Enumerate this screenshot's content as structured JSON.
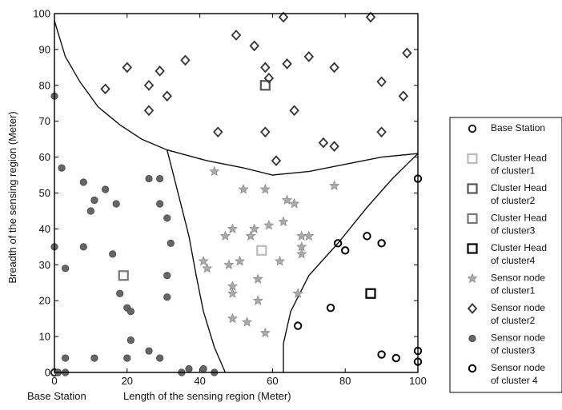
{
  "chart_data": {
    "type": "scatter",
    "title": "",
    "xlabel": "Length of the sensing region (Meter)",
    "ylabel": "Breadth of the sensing region (Meter)",
    "corner_label": "Base Station",
    "xlim": [
      0,
      100
    ],
    "ylim": [
      0,
      100
    ],
    "xticks": [
      0,
      20,
      40,
      60,
      80,
      100
    ],
    "yticks": [
      0,
      10,
      20,
      30,
      40,
      50,
      60,
      70,
      80,
      90,
      100
    ],
    "grid": false,
    "legend_position": "right, outside plot",
    "legend": [
      {
        "label": [
          "Base Station"
        ],
        "marker": "circle",
        "color": "#222222"
      },
      {
        "label": [
          "Cluster Head",
          "of cluster1"
        ],
        "marker": "square",
        "color": "#bbbbbb"
      },
      {
        "label": [
          "Cluster Head",
          "of cluster2"
        ],
        "marker": "square",
        "color": "#555555"
      },
      {
        "label": [
          "Cluster Head",
          "of cluster3"
        ],
        "marker": "square",
        "color": "#777777"
      },
      {
        "label": [
          "Cluster Head",
          "of cluster4"
        ],
        "marker": "square",
        "color": "#000000"
      },
      {
        "label": [
          "Sensor node",
          "of cluster1"
        ],
        "marker": "star",
        "color": "#aaaaaa"
      },
      {
        "label": [
          "Sensor node",
          "of cluster2"
        ],
        "marker": "diamond",
        "color": "#333333"
      },
      {
        "label": [
          "Sensor node",
          "of cluster3"
        ],
        "marker": "filled-circle",
        "color": "#666666"
      },
      {
        "label": [
          "Sensor node",
          "of cluster 4"
        ],
        "marker": "circle",
        "color": "#000000"
      }
    ],
    "series": [
      {
        "key": "base_station",
        "marker": "circle",
        "color": "#222222",
        "points": [
          [
            0,
            0
          ]
        ]
      },
      {
        "key": "ch1",
        "marker": "square",
        "color": "#bbbbbb",
        "points": [
          [
            57,
            34
          ]
        ]
      },
      {
        "key": "ch2",
        "marker": "square",
        "color": "#555555",
        "points": [
          [
            58,
            80
          ]
        ]
      },
      {
        "key": "ch3",
        "marker": "square",
        "color": "#777777",
        "points": [
          [
            19,
            27
          ]
        ]
      },
      {
        "key": "ch4",
        "marker": "square",
        "color": "#000000",
        "points": [
          [
            87,
            22
          ]
        ]
      },
      {
        "key": "sn1",
        "marker": "star",
        "color": "#aaaaaa",
        "points": [
          [
            44,
            56
          ],
          [
            52,
            51
          ],
          [
            58,
            51
          ],
          [
            66,
            47
          ],
          [
            77,
            52
          ],
          [
            64,
            48
          ],
          [
            49,
            40
          ],
          [
            55,
            40
          ],
          [
            59,
            41
          ],
          [
            63,
            42
          ],
          [
            47,
            38
          ],
          [
            54,
            38
          ],
          [
            68,
            38
          ],
          [
            70,
            38
          ],
          [
            68,
            35
          ],
          [
            41,
            31
          ],
          [
            42,
            29
          ],
          [
            48,
            30
          ],
          [
            51,
            31
          ],
          [
            62,
            31
          ],
          [
            49,
            24
          ],
          [
            49,
            22
          ],
          [
            56,
            26
          ],
          [
            67,
            22
          ],
          [
            56,
            20
          ],
          [
            49,
            15
          ],
          [
            53,
            14
          ],
          [
            58,
            11
          ],
          [
            68,
            33
          ]
        ]
      },
      {
        "key": "sn2",
        "marker": "diamond",
        "color": "#333333",
        "points": [
          [
            50,
            94
          ],
          [
            55,
            91
          ],
          [
            63,
            99
          ],
          [
            87,
            99
          ],
          [
            20,
            85
          ],
          [
            29,
            84
          ],
          [
            36,
            87
          ],
          [
            58,
            85
          ],
          [
            64,
            86
          ],
          [
            70,
            88
          ],
          [
            77,
            85
          ],
          [
            97,
            89
          ],
          [
            14,
            79
          ],
          [
            26,
            80
          ],
          [
            59,
            82
          ],
          [
            90,
            81
          ],
          [
            26,
            73
          ],
          [
            31,
            77
          ],
          [
            66,
            73
          ],
          [
            96,
            77
          ],
          [
            45,
            67
          ],
          [
            58,
            67
          ],
          [
            74,
            64
          ],
          [
            77,
            63
          ],
          [
            90,
            67
          ],
          [
            61,
            59
          ]
        ]
      },
      {
        "key": "sn3",
        "marker": "filled-circle",
        "color": "#666666",
        "points": [
          [
            0,
            77
          ],
          [
            2,
            57
          ],
          [
            8,
            53
          ],
          [
            11,
            48
          ],
          [
            10,
            45
          ],
          [
            14,
            51
          ],
          [
            17,
            47
          ],
          [
            26,
            54
          ],
          [
            29,
            54
          ],
          [
            29,
            47
          ],
          [
            31,
            43
          ],
          [
            32,
            36
          ],
          [
            31,
            27
          ],
          [
            31,
            21
          ],
          [
            0,
            35
          ],
          [
            3,
            29
          ],
          [
            8,
            35
          ],
          [
            16,
            33
          ],
          [
            18,
            22
          ],
          [
            20,
            18
          ],
          [
            21,
            17
          ],
          [
            21,
            9
          ],
          [
            26,
            6
          ],
          [
            29,
            4
          ],
          [
            3,
            4
          ],
          [
            11,
            4
          ],
          [
            20,
            4
          ],
          [
            35,
            0
          ],
          [
            37,
            1
          ],
          [
            41,
            1
          ],
          [
            44,
            0
          ],
          [
            1,
            0
          ],
          [
            3,
            0
          ]
        ]
      },
      {
        "key": "sn4",
        "marker": "circle",
        "color": "#000000",
        "points": [
          [
            100,
            54
          ],
          [
            78,
            36
          ],
          [
            80,
            34
          ],
          [
            86,
            38
          ],
          [
            90,
            36
          ],
          [
            67,
            13
          ],
          [
            76,
            18
          ],
          [
            90,
            5
          ],
          [
            94,
            4
          ],
          [
            100,
            6
          ],
          [
            100,
            3
          ]
        ]
      }
    ],
    "boundaries": [
      [
        [
          0,
          98
        ],
        [
          3,
          88
        ],
        [
          7,
          81
        ],
        [
          12,
          74
        ],
        [
          18,
          69
        ],
        [
          24,
          65
        ],
        [
          31,
          62
        ]
      ],
      [
        [
          31,
          62
        ],
        [
          42,
          59
        ],
        [
          52,
          57
        ],
        [
          60,
          55
        ],
        [
          70,
          56
        ],
        [
          80,
          58
        ],
        [
          90,
          60
        ],
        [
          100,
          61
        ]
      ],
      [
        [
          31,
          62
        ],
        [
          34,
          50
        ],
        [
          37,
          38
        ],
        [
          39,
          27
        ],
        [
          41,
          17
        ],
        [
          44,
          7
        ],
        [
          47,
          0
        ]
      ],
      [
        [
          100,
          61
        ],
        [
          93,
          54
        ],
        [
          86,
          46
        ],
        [
          78,
          36
        ],
        [
          70,
          27
        ],
        [
          65,
          17
        ],
        [
          63,
          8
        ],
        [
          63,
          0
        ]
      ]
    ]
  }
}
